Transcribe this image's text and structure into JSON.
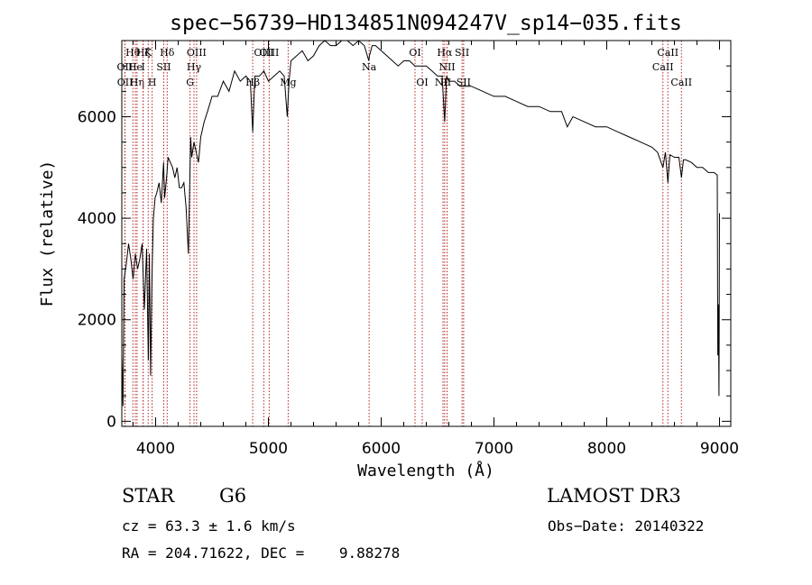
{
  "chart_data": {
    "type": "line",
    "title": "spec−56739−HD134851N094247V_sp14−035.fits",
    "xlabel": "Wavelength (Å)",
    "ylabel": "Flux (relative)",
    "xlim": [
      3700,
      9100
    ],
    "ylim": [
      -100,
      7500
    ],
    "xticks": [
      4000,
      5000,
      6000,
      7000,
      8000,
      9000
    ],
    "yticks": [
      0,
      2000,
      4000,
      6000
    ],
    "series": [
      {
        "name": "spectrum",
        "x": [
          3700,
          3710,
          3720,
          3740,
          3760,
          3780,
          3800,
          3820,
          3840,
          3860,
          3880,
          3900,
          3920,
          3935,
          3945,
          3955,
          3968,
          3980,
          3995,
          4010,
          4030,
          4050,
          4070,
          4080,
          4101,
          4110,
          4130,
          4150,
          4170,
          4190,
          4210,
          4230,
          4250,
          4270,
          4290,
          4300,
          4310,
          4320,
          4340,
          4360,
          4380,
          4400,
          4430,
          4460,
          4500,
          4550,
          4600,
          4650,
          4700,
          4750,
          4800,
          4840,
          4861,
          4880,
          4920,
          4960,
          5000,
          5050,
          5100,
          5140,
          5167,
          5183,
          5200,
          5250,
          5300,
          5350,
          5400,
          5450,
          5500,
          5550,
          5600,
          5650,
          5700,
          5750,
          5800,
          5850,
          5890,
          5896,
          5920,
          5950,
          6000,
          6050,
          6100,
          6150,
          6200,
          6250,
          6300,
          6350,
          6400,
          6450,
          6500,
          6540,
          6563,
          6580,
          6600,
          6650,
          6700,
          6750,
          6800,
          6900,
          7000,
          7100,
          7200,
          7300,
          7400,
          7500,
          7600,
          7650,
          7700,
          7800,
          7900,
          8000,
          8100,
          8200,
          8300,
          8400,
          8450,
          8498,
          8520,
          8542,
          8560,
          8600,
          8640,
          8662,
          8680,
          8700,
          8750,
          8800,
          8850,
          8900,
          8950,
          8980,
          8985,
          8990,
          8995,
          9000
        ],
        "values": [
          1300,
          300,
          2800,
          3100,
          3500,
          3200,
          2800,
          3300,
          3000,
          3200,
          3500,
          2200,
          3400,
          1200,
          3300,
          900,
          2900,
          4000,
          4400,
          4500,
          4700,
          4300,
          5100,
          4400,
          4900,
          5200,
          5100,
          5000,
          4800,
          5000,
          4600,
          4600,
          4700,
          4200,
          3300,
          4400,
          5600,
          5200,
          5500,
          5300,
          5100,
          5600,
          5900,
          6100,
          6400,
          6400,
          6700,
          6500,
          6900,
          6700,
          6800,
          6700,
          5700,
          6800,
          6800,
          6900,
          6700,
          6800,
          6900,
          6800,
          6000,
          6700,
          7100,
          7200,
          7300,
          7100,
          7200,
          7400,
          7500,
          7400,
          7400,
          7500,
          7500,
          7400,
          7500,
          7400,
          7100,
          7200,
          7400,
          7400,
          7300,
          7200,
          7100,
          7000,
          7100,
          7100,
          7000,
          7000,
          7000,
          6900,
          6800,
          6800,
          5900,
          6800,
          6700,
          6700,
          6600,
          6600,
          6600,
          6500,
          6400,
          6400,
          6300,
          6200,
          6200,
          6100,
          6100,
          5800,
          6000,
          5900,
          5800,
          5800,
          5700,
          5600,
          5500,
          5400,
          5300,
          5000,
          5300,
          4700,
          5250,
          5200,
          5200,
          4800,
          5150,
          5150,
          5100,
          5000,
          5000,
          4900,
          4900,
          4850,
          1300,
          2300,
          500,
          4100
        ]
      }
    ],
    "line_markers": [
      {
        "label": "Hθ",
        "wl": 3798,
        "row": 1
      },
      {
        "label": "OII",
        "wl": 3727,
        "row": 2
      },
      {
        "label": "OII",
        "wl": 3729,
        "row": 3
      },
      {
        "label": "He",
        "wl": 3820,
        "row": 2
      },
      {
        "label": "Hη",
        "wl": 3835,
        "row": 3
      },
      {
        "label": "Hζ",
        "wl": 3889,
        "row": 1
      },
      {
        "label": "K",
        "wl": 3934,
        "row": 1
      },
      {
        "label": "I",
        "wl": 3889,
        "row": 2
      },
      {
        "label": "H",
        "wl": 3969,
        "row": 3
      },
      {
        "label": "SII",
        "wl": 4072,
        "row": 2
      },
      {
        "label": "Hδ",
        "wl": 4102,
        "row": 1
      },
      {
        "label": "Hγ",
        "wl": 4340,
        "row": 2
      },
      {
        "label": "G",
        "wl": 4305,
        "row": 3
      },
      {
        "label": "OIII",
        "wl": 4363,
        "row": 1
      },
      {
        "label": "Hβ",
        "wl": 4861,
        "row": 3
      },
      {
        "label": "OIII",
        "wl": 4959,
        "row": 1
      },
      {
        "label": "OIII",
        "wl": 5007,
        "row": 1
      },
      {
        "label": "Mg",
        "wl": 5175,
        "row": 3
      },
      {
        "label": "Na",
        "wl": 5893,
        "row": 2
      },
      {
        "label": "OI",
        "wl": 6300,
        "row": 1
      },
      {
        "label": "OI",
        "wl": 6364,
        "row": 3
      },
      {
        "label": "Hα",
        "wl": 6563,
        "row": 1
      },
      {
        "label": "NII",
        "wl": 6548,
        "row": 3
      },
      {
        "label": "NII",
        "wl": 6584,
        "row": 2
      },
      {
        "label": "SII",
        "wl": 6717,
        "row": 1
      },
      {
        "label": "SII",
        "wl": 6731,
        "row": 3
      },
      {
        "label": "CaII",
        "wl": 8542,
        "row": 1
      },
      {
        "label": "CaII",
        "wl": 8498,
        "row": 2
      },
      {
        "label": "CaII",
        "wl": 8662,
        "row": 3
      }
    ]
  },
  "info": {
    "object_type": "STAR",
    "subclass": "G6",
    "survey": "LAMOST DR3",
    "redshift": "cz = 63.3 ± 1.6 km/s",
    "obs_date": "Obs−Date: 20140322",
    "coords": "RA = 204.71622, DEC =    9.88278"
  }
}
